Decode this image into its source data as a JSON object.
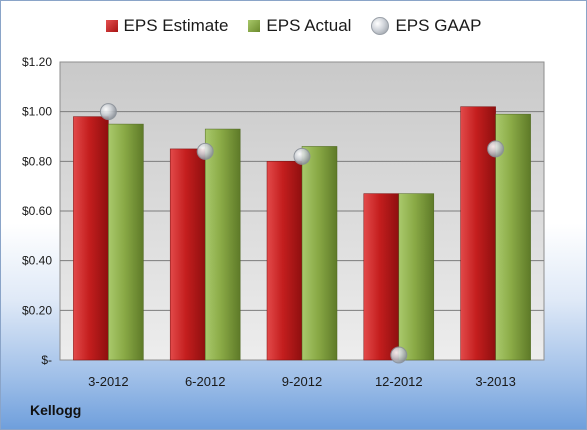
{
  "legend": {
    "estimate": "EPS Estimate",
    "actual": "EPS Actual",
    "gaap": "EPS GAAP"
  },
  "company": "Kellogg",
  "colors": {
    "estimate": "#c41e1e",
    "actual": "#8aaa46",
    "gaap": "#b8bcc2"
  },
  "chart_data": {
    "type": "bar",
    "categories": [
      "3-2012",
      "6-2012",
      "9-2012",
      "12-2012",
      "3-2013"
    ],
    "series": [
      {
        "name": "EPS Estimate",
        "values": [
          0.98,
          0.85,
          0.8,
          0.67,
          1.02
        ]
      },
      {
        "name": "EPS Actual",
        "values": [
          0.95,
          0.93,
          0.86,
          0.67,
          0.99
        ]
      },
      {
        "name": "EPS GAAP",
        "type": "scatter",
        "values": [
          1.0,
          0.84,
          0.82,
          0.02,
          0.85
        ]
      }
    ],
    "yticks": [
      "$-",
      "$0.20",
      "$0.40",
      "$0.60",
      "$0.80",
      "$1.00",
      "$1.20"
    ],
    "ylim": [
      0,
      1.2
    ],
    "grid": true,
    "legend_position": "top"
  }
}
